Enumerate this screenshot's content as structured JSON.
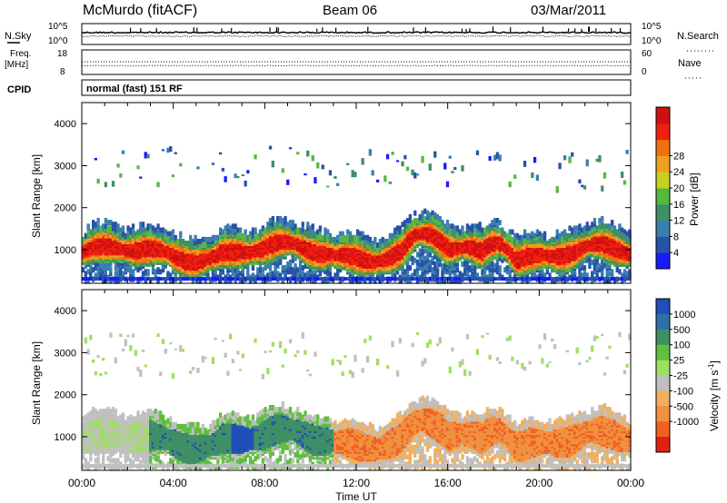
{
  "header": {
    "station": "McMurdo (fitACF)",
    "beam": "Beam 06",
    "date": "03/Mar/2011"
  },
  "noise_panel": {
    "left_label": "N.Sky",
    "right_label": "N.Search",
    "left_ticks": [
      "10^5",
      "10^0"
    ],
    "right_ticks": [
      "10^5",
      "10^0"
    ]
  },
  "freq_panel": {
    "left_label_1": "Freq.",
    "left_label_2": "[MHz]",
    "right_label": "Nave",
    "left_ticks": [
      "18",
      "8"
    ],
    "right_ticks": [
      "60",
      "0"
    ]
  },
  "cpid": {
    "label": "CPID",
    "value": "normal (fast) 151 RF"
  },
  "chart_data": [
    {
      "type": "heatmap",
      "name": "power",
      "ylabel": "Slant Range [km]",
      "xlabel": "",
      "yticks": [
        "1000",
        "2000",
        "3000",
        "4000"
      ],
      "ylim": [
        200,
        4500
      ],
      "xlim": [
        0,
        24
      ],
      "colorbar": {
        "label": "Power [dB]",
        "ticks": [
          "4",
          "8",
          "12",
          "16",
          "20",
          "24",
          "28"
        ],
        "colors": [
          "#1a1aff",
          "#2852a8",
          "#3a7fb0",
          "#3f8f66",
          "#55b83f",
          "#c8d020",
          "#f0a020",
          "#f07010",
          "#f02010",
          "#d01010"
        ]
      }
    },
    {
      "type": "heatmap",
      "name": "velocity",
      "ylabel": "Slant Range [km]",
      "xlabel": "Time UT",
      "yticks": [
        "1000",
        "2000",
        "3000",
        "4000"
      ],
      "ylim": [
        200,
        4500
      ],
      "xlim": [
        0,
        24
      ],
      "xticks": [
        "00:00",
        "04:00",
        "08:00",
        "12:00",
        "16:00",
        "20:00",
        "00:00"
      ],
      "colorbar": {
        "label": "Velocity [m s",
        "label_exp": "-1",
        "label_end": "]",
        "ticks": [
          "1000",
          "500",
          "100",
          "25",
          "-25",
          "-100",
          "-500",
          "-1000"
        ],
        "colors": [
          "#1f4fb8",
          "#2f6fa8",
          "#3f8f66",
          "#5fbf3f",
          "#9fdf5f",
          "#c0c0c0",
          "#f0b060",
          "#f09040",
          "#f06020",
          "#e02010"
        ]
      }
    }
  ]
}
